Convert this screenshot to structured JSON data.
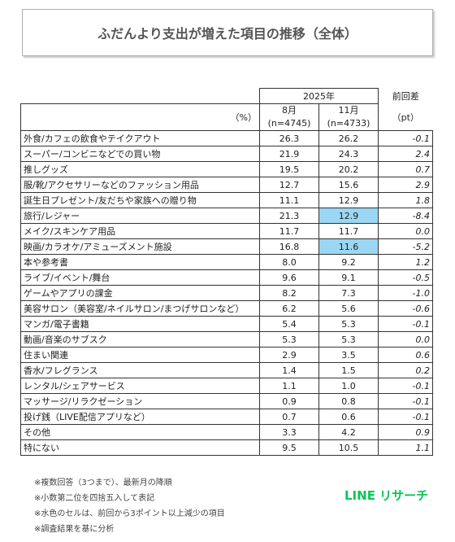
{
  "title": "ふだんより支出が増えた項目の推移（全体）",
  "header": {
    "year": "2025年",
    "diff_label": "前回差",
    "unit_label": "（%）",
    "col1_month": "8月",
    "col1_n": "(n=4745)",
    "col2_month": "11月",
    "col2_n": "(n=4733)",
    "diff_unit": "（pt）"
  },
  "chart_data": {
    "type": "table",
    "columns": [
      "8月 (n=4745)",
      "11月 (n=4733)",
      "前回差"
    ],
    "rows": [
      {
        "label": "外食/カフェの飲食やテイクアウト",
        "aug": "26.3",
        "nov": "26.2",
        "diff": "-0.1",
        "highlight": false
      },
      {
        "label": "スーパー/コンビニなどでの買い物",
        "aug": "21.9",
        "nov": "24.3",
        "diff": "2.4",
        "highlight": false
      },
      {
        "label": "推しグッズ",
        "aug": "19.5",
        "nov": "20.2",
        "diff": "0.7",
        "highlight": false
      },
      {
        "label": "服/靴/アクセサリーなどのファッション用品",
        "aug": "12.7",
        "nov": "15.6",
        "diff": "2.9",
        "highlight": false
      },
      {
        "label": "誕生日プレゼント/友だちや家族への贈り物",
        "aug": "11.1",
        "nov": "12.9",
        "diff": "1.8",
        "highlight": false
      },
      {
        "label": "旅行/レジャー",
        "aug": "21.3",
        "nov": "12.9",
        "diff": "-8.4",
        "highlight": true
      },
      {
        "label": "メイク/スキンケア用品",
        "aug": "11.7",
        "nov": "11.7",
        "diff": "0.0",
        "highlight": false
      },
      {
        "label": "映画/カラオケ/アミューズメント施設",
        "aug": "16.8",
        "nov": "11.6",
        "diff": "-5.2",
        "highlight": true
      },
      {
        "label": "本や参考書",
        "aug": "8.0",
        "nov": "9.2",
        "diff": "1.2",
        "highlight": false
      },
      {
        "label": "ライブ/イベント/舞台",
        "aug": "9.6",
        "nov": "9.1",
        "diff": "-0.5",
        "highlight": false
      },
      {
        "label": "ゲームやアプリの課金",
        "aug": "8.2",
        "nov": "7.3",
        "diff": "-1.0",
        "highlight": false
      },
      {
        "label": "美容サロン（美容室/ネイルサロン/まつげサロンなど）",
        "aug": "6.2",
        "nov": "5.6",
        "diff": "-0.6",
        "highlight": false
      },
      {
        "label": "マンガ/電子書籍",
        "aug": "5.4",
        "nov": "5.3",
        "diff": "-0.1",
        "highlight": false
      },
      {
        "label": "動画/音楽のサブスク",
        "aug": "5.3",
        "nov": "5.3",
        "diff": "0.0",
        "highlight": false
      },
      {
        "label": "住まい関連",
        "aug": "2.9",
        "nov": "3.5",
        "diff": "0.6",
        "highlight": false
      },
      {
        "label": "香水/フレグランス",
        "aug": "1.4",
        "nov": "1.5",
        "diff": "0.2",
        "highlight": false
      },
      {
        "label": "レンタル/シェアサービス",
        "aug": "1.1",
        "nov": "1.0",
        "diff": "-0.1",
        "highlight": false
      },
      {
        "label": "マッサージ/リラクゼーション",
        "aug": "0.9",
        "nov": "0.8",
        "diff": "-0.1",
        "highlight": false
      },
      {
        "label": "投げ銭（LIVE配信アプリなど）",
        "aug": "0.7",
        "nov": "0.6",
        "diff": "-0.1",
        "highlight": false
      },
      {
        "label": "その他",
        "aug": "3.3",
        "nov": "4.2",
        "diff": "0.9",
        "highlight": false
      },
      {
        "label": "特にない",
        "aug": "9.5",
        "nov": "10.5",
        "diff": "1.1",
        "highlight": false
      }
    ]
  },
  "notes": [
    "※複数回答（3つまで）、最新月の降順",
    "※小数第二位を四捨五入して表記",
    "※水色のセルは、前回から3ポイント以上減少の項目",
    "※調査結果を基に分析"
  ],
  "logo": "LINE リサーチ",
  "colors": {
    "highlight": "#9bd7f3",
    "logo": "#06c755"
  }
}
